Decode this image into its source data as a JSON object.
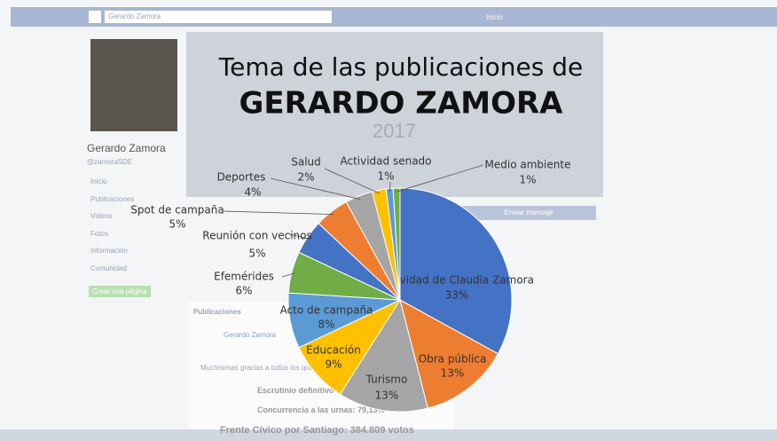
{
  "chart_data": {
    "type": "pie",
    "title": "Tema de las publicaciones de",
    "subtitle": "GERARDO ZAMORA",
    "categories": [
      "Actividad de Claudia Zamora",
      "Obra pública",
      "Turismo",
      "Educación",
      "Acto de campaña",
      "Efemérides",
      "Reunión con vecinos",
      "Spot de campaña",
      "Deportes",
      "Salud",
      "Actividad senado",
      "Medio ambiente"
    ],
    "values": [
      33,
      13,
      13,
      9,
      8,
      6,
      5,
      5,
      4,
      2,
      1,
      1
    ],
    "value_labels": [
      "33%",
      "13%",
      "13%",
      "9%",
      "8%",
      "6%",
      "5%",
      "5%",
      "4%",
      "2%",
      "1%",
      "1%"
    ],
    "colors": [
      "#4472c4",
      "#ed7d31",
      "#a5a5a5",
      "#ffc000",
      "#5b9bd5",
      "#70ad47",
      "#4472c4",
      "#ed7d31",
      "#a5a5a5",
      "#ffc000",
      "#5b9bd5",
      "#70ad47"
    ]
  },
  "background": {
    "search": "Gerardo Zamora",
    "top_home": "Inicio",
    "page_name": "Gerardo Zamora",
    "handle": "@zamoraSDE",
    "menu": [
      "Inicio",
      "Publicaciones",
      "Videos",
      "Fotos",
      "Información",
      "Comunidad"
    ],
    "create_page": "Crear una página",
    "year": "2017",
    "send_message": "Enviar mensaje",
    "posts_heading": "Publicaciones",
    "post_author": "Gerardo Zamora",
    "post_text": "Muchísimas gracias a todos los que...",
    "post_lines": [
      "Escrutinio definitivo",
      "Concurrencia a las urnas: 79,13%",
      "Frente Cívico por Santiago: 384.809 votos"
    ]
  }
}
